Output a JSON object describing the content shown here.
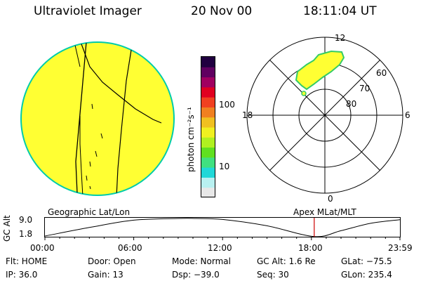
{
  "header": {
    "instrument": "Ultraviolet Imager",
    "date": "20 Nov 00",
    "time": "18:11:04 UT"
  },
  "colorbar": {
    "unit_label": "photon cm⁻²s⁻¹",
    "tick_labels": [
      "100",
      "10"
    ],
    "colors": [
      "#e8e8e8",
      "#b8f0f0",
      "#20d8d8",
      "#40e080",
      "#60e020",
      "#b0f020",
      "#f0f020",
      "#f0c020",
      "#f08020",
      "#f04020",
      "#e00020",
      "#a00060",
      "#600060",
      "#200040"
    ]
  },
  "globe_panel": {
    "fill_color": "#ffff33",
    "rim_color": "#00ccaa"
  },
  "polar_plot": {
    "mlt_labels": {
      "top": "12",
      "left": "18",
      "right": "6",
      "bottom": "0"
    },
    "lat_labels": [
      "60",
      "70",
      "80"
    ],
    "auroral_fill": "#ffff33",
    "auroral_edge": "#33cc66"
  },
  "timeline": {
    "left_title": "Geographic Lat/Lon",
    "right_title": "Apex MLat/MLT",
    "ylabel": "GC Alt",
    "y_ticks": [
      "9.0",
      "1.8"
    ],
    "x_ticks": [
      "00:00",
      "06:00",
      "12:00",
      "18:00",
      "23:59"
    ],
    "marker_color": "#cc0000"
  },
  "chart_data": {
    "type": "line",
    "title": "",
    "xlabel": "",
    "ylabel": "GC Alt",
    "xlim_hours": [
      0,
      23.98
    ],
    "ylim": [
      1.8,
      9.0
    ],
    "series": [
      {
        "x_hours": [
          0,
          3,
          6,
          9,
          10.2,
          12,
          15,
          18.2,
          20,
          22,
          23.98
        ],
        "values": [
          1.8,
          5.3,
          8.3,
          9.0,
          9.0,
          8.6,
          6.0,
          1.6,
          4.0,
          7.0,
          8.5
        ]
      }
    ],
    "current_time_hours": 18.19
  },
  "status": {
    "flt": "Flt: HOME",
    "ip": "IP: 36.0",
    "door": "Door: Open",
    "gain": "Gain: 13",
    "mode": "Mode: Normal",
    "dsp": "Dsp:  −39.0",
    "gc_alt": "GC Alt: 1.6 Re",
    "seq": "Seq: 30",
    "glat": "GLat: −75.5",
    "glon": "GLon: 235.4"
  }
}
